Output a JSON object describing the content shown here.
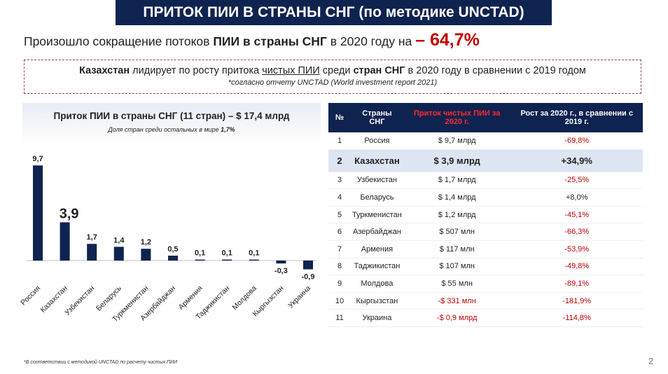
{
  "header": {
    "title": "ПРИТОК ПИИ В СТРАНЫ СНГ (по методике UNCTAD)"
  },
  "headline": {
    "part1": "Произошло сокращение потоков ",
    "bold": "ПИИ в страны СНГ",
    "part2": " в 2020 году на ",
    "pct": "– 64,7%"
  },
  "notice": {
    "b1": "Казахстан",
    "t1": " лидирует по росту притока ",
    "u1": "чистых ПИИ",
    "t2": " среди ",
    "b2": "стран СНГ",
    "t3": " в 2020 году в сравнении с 2019 годом",
    "sub": "*согласно отчету UNCTAD (World investment report 2021)"
  },
  "chart_header": {
    "title": "Приток ПИИ в страны СНГ (11 стран) – $ 17,4 млрд",
    "subtitle_prefix": "Доля стран среди остальных в мире ",
    "subtitle_value": "1,7%"
  },
  "chart_data": {
    "type": "bar",
    "categories": [
      "Россия",
      "Казахстан",
      "Узбекистан",
      "Беларусь",
      "Туркменистан",
      "Азербайджан",
      "Армения",
      "Таджикистан",
      "Молдова",
      "Кыргызстан",
      "Украина"
    ],
    "values": [
      9.7,
      3.9,
      1.7,
      1.4,
      1.2,
      0.5,
      0.1,
      0.1,
      0.1,
      -0.3,
      -0.9
    ],
    "labels": [
      "9,7",
      "3,9",
      "1,7",
      "1,4",
      "1,2",
      "0,5",
      "0,1",
      "0,1",
      "0,1",
      "-0,3",
      "-0,9"
    ],
    "highlight_index": 1,
    "bar_color": "#0e2350",
    "ylim": [
      -1.5,
      10
    ]
  },
  "table": {
    "headers": [
      "№",
      "Страны СНГ",
      "Приток чистых ПИИ за 2020 г.",
      "Рост за 2020 г., в сравнении с 2019 г."
    ],
    "rows": [
      {
        "n": "1",
        "country": "Россия",
        "inflow": "$ 9,7 млрд",
        "growth": "-69,8%"
      },
      {
        "n": "2",
        "country": "Казахстан",
        "inflow": "$ 3,9 млрд",
        "growth": "+34,9%"
      },
      {
        "n": "3",
        "country": "Узбекистан",
        "inflow": "$ 1,7 млрд",
        "growth": "-25,5%"
      },
      {
        "n": "4",
        "country": "Беларусь",
        "inflow": "$ 1,4 млрд",
        "growth": "+8,0%"
      },
      {
        "n": "5",
        "country": "Туркменистан",
        "inflow": "$ 1,2 млрд",
        "growth": "-45,1%"
      },
      {
        "n": "6",
        "country": "Азербайджан",
        "inflow": "$ 507 млн",
        "growth": "-66,3%"
      },
      {
        "n": "7",
        "country": "Армения",
        "inflow": "$ 117 млн",
        "growth": "-53,9%"
      },
      {
        "n": "8",
        "country": "Таджикистан",
        "inflow": "$ 107 млн",
        "growth": "-49,8%"
      },
      {
        "n": "9",
        "country": "Молдова",
        "inflow": "$ 55 млн",
        "growth": "-89,1%"
      },
      {
        "n": "10",
        "country": "Кыргызстан",
        "inflow": "-$ 331 млн",
        "growth": "-181,9%"
      },
      {
        "n": "11",
        "country": "Украина",
        "inflow": "-$ 0,9 млрд",
        "growth": "-114,8%"
      }
    ]
  },
  "colors": {
    "navy": "#0e2350",
    "red": "#c00000",
    "highlight": "#dde5f2"
  },
  "footnote": "*В соответствии с методикой UNCTAD по расчету чистых ПИИ",
  "page_number": "2"
}
